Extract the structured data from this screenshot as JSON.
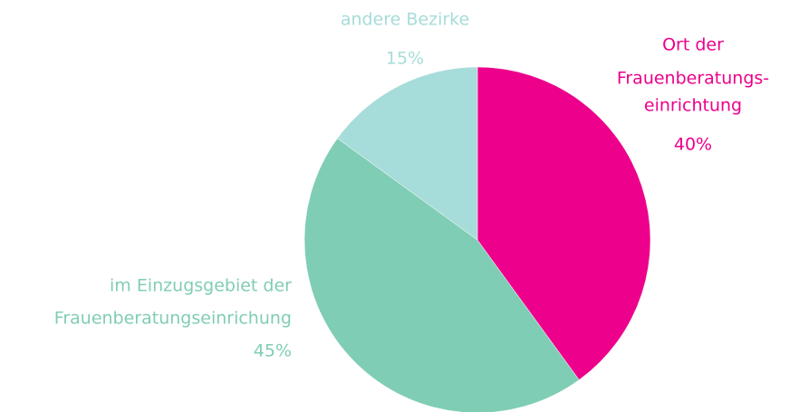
{
  "chart_data": {
    "type": "pie",
    "categories": [
      [
        "Ort der",
        "Frauenberatungs-",
        "einrichtung"
      ],
      [
        "im Einzugsgebiet der",
        "Frauenberatungseinrichung"
      ],
      [
        "andere Bezirke"
      ]
    ],
    "values": [
      40,
      45,
      15
    ],
    "value_labels": [
      "40%",
      "45%",
      "15%"
    ],
    "colors": [
      "#ec008c",
      "#80cdb5",
      "#a6dcd9"
    ]
  }
}
